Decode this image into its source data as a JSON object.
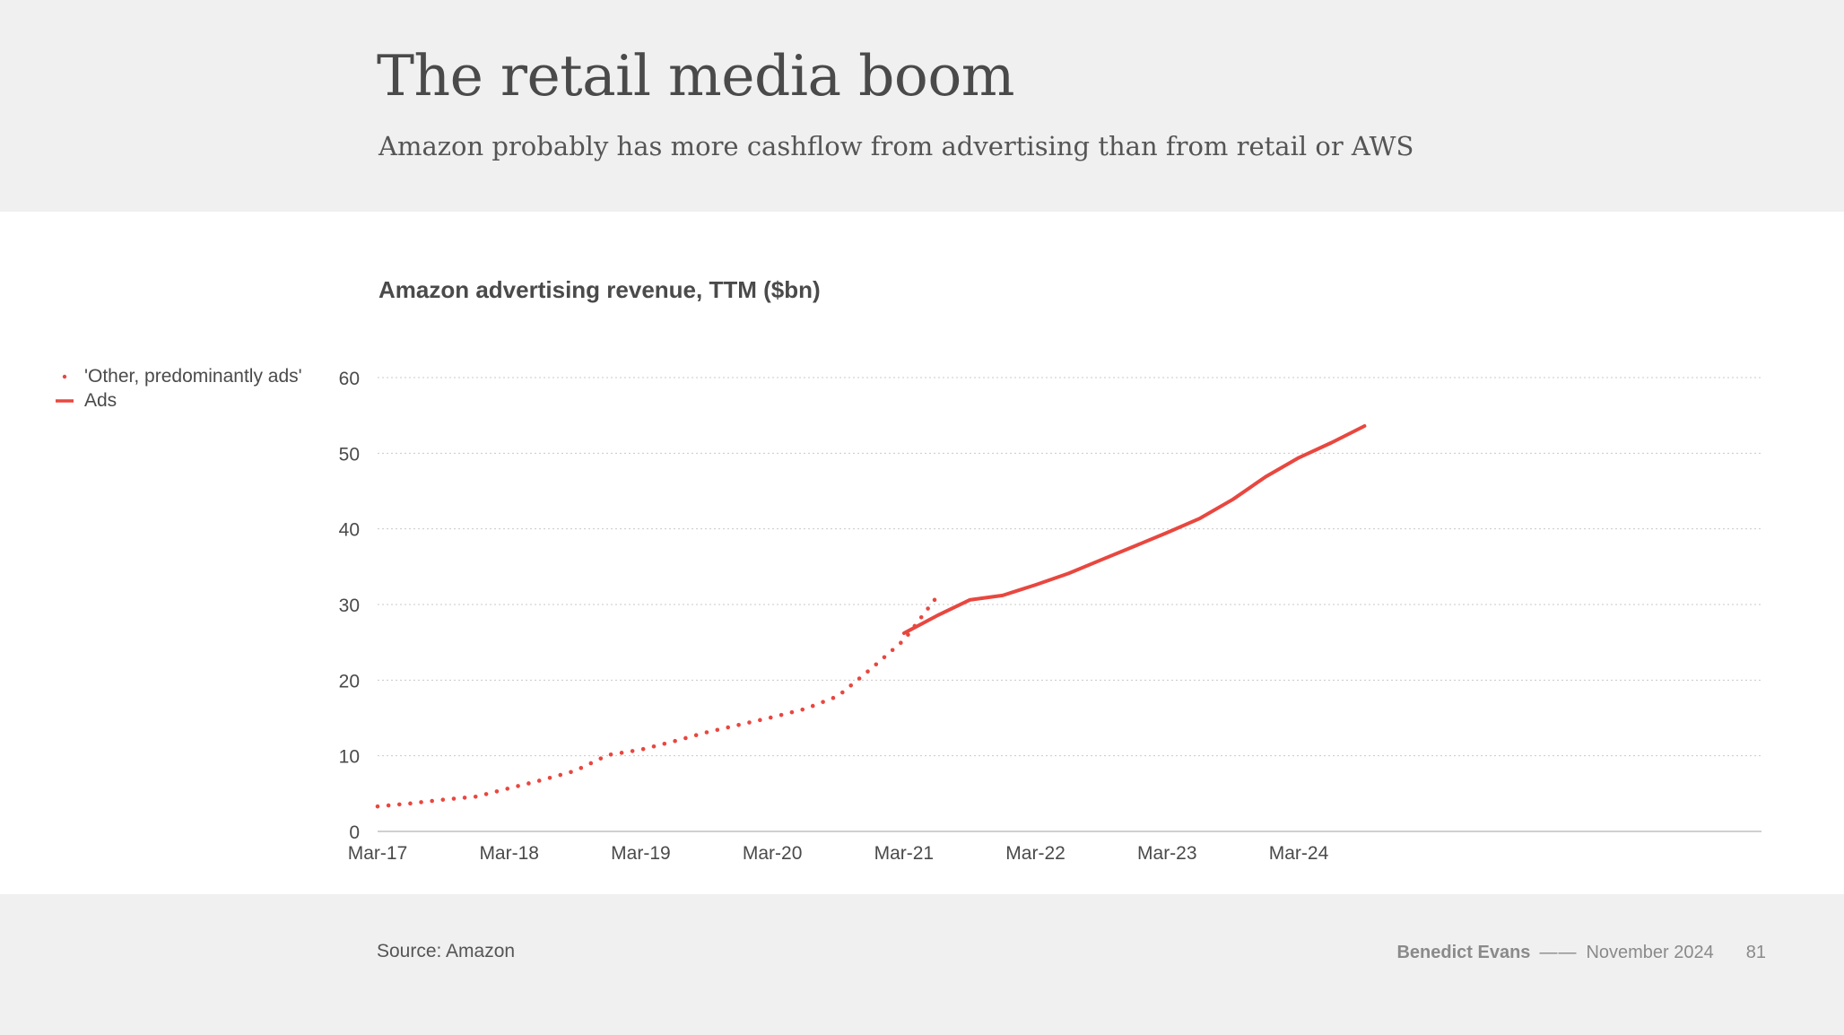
{
  "header": {
    "title": "The retail media boom",
    "subtitle": "Amazon probably has more cashflow from advertising than from retail or AWS"
  },
  "footer": {
    "source": "Source: Amazon",
    "author": "Benedict Evans",
    "separator": "——",
    "date": "November 2024",
    "page_number": "81"
  },
  "colors": {
    "series": "#e8473f",
    "grid": "#c9c9c9",
    "axis": "#c0c0c0",
    "text": "#4a4a4a"
  },
  "chart_data": {
    "type": "line",
    "title": "Amazon advertising revenue, TTM ($bn)",
    "xlabel": "",
    "ylabel": "",
    "ylim": [
      0,
      60
    ],
    "yticks": [
      "0",
      "10",
      "20",
      "30",
      "40",
      "50",
      "60"
    ],
    "xticks": [
      "Mar-17",
      "Mar-18",
      "Mar-19",
      "Mar-20",
      "Mar-21",
      "Mar-22",
      "Mar-23",
      "Mar-24"
    ],
    "grid": true,
    "legend_position": "left",
    "series": [
      {
        "name": "'Other, predominantly ads'",
        "style": "dotted",
        "x": [
          "Mar-17",
          "Jun-17",
          "Sep-17",
          "Dec-17",
          "Mar-18",
          "Jun-18",
          "Sep-18",
          "Dec-18",
          "Mar-19",
          "Jun-19",
          "Sep-19",
          "Dec-19",
          "Mar-20",
          "Jun-20",
          "Sep-20",
          "Dec-20",
          "Mar-21",
          "Jun-21"
        ],
        "y": [
          3.3,
          3.7,
          4.2,
          4.6,
          5.7,
          6.8,
          8.0,
          10.1,
          10.8,
          11.9,
          13.1,
          14.1,
          15.1,
          16.2,
          17.9,
          21.5,
          25.3,
          31.0
        ]
      },
      {
        "name": "Ads",
        "style": "solid",
        "x": [
          "Mar-21",
          "Jun-21",
          "Sep-21",
          "Dec-21",
          "Mar-22",
          "Jun-22",
          "Sep-22",
          "Dec-22",
          "Mar-23",
          "Jun-23",
          "Sep-23",
          "Dec-23",
          "Mar-24",
          "Jun-24",
          "Sep-24"
        ],
        "y": [
          26.2,
          28.5,
          30.6,
          31.2,
          32.6,
          34.1,
          35.9,
          37.7,
          39.5,
          41.4,
          43.9,
          46.9,
          49.4,
          51.4,
          53.6
        ]
      }
    ]
  }
}
